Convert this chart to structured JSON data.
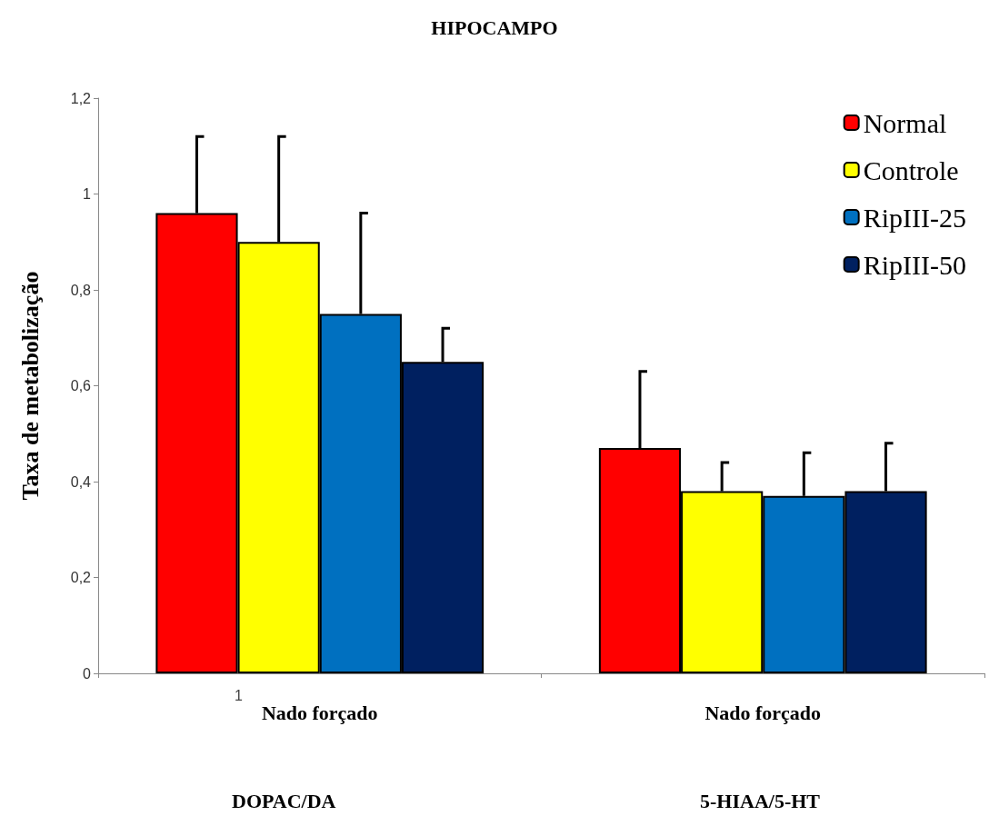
{
  "chart_data": {
    "type": "bar",
    "title": "HIPOCAMPO",
    "ylabel": "Taxa de metabolização",
    "categories": [
      "Nado forçado",
      "Nado forçado"
    ],
    "series": [
      {
        "name": "Normal",
        "color": "#ff0000",
        "values": [
          0.96,
          0.47
        ],
        "errors": [
          [
            0.96,
            1.12
          ],
          [
            0.47,
            0.63
          ]
        ]
      },
      {
        "name": "Controle",
        "color": "#ffff00",
        "values": [
          0.9,
          0.38
        ],
        "errors": [
          [
            0.9,
            1.12
          ],
          [
            0.38,
            0.44
          ]
        ]
      },
      {
        "name": "RipIII-25",
        "color": "#0070c0",
        "values": [
          0.75,
          0.37
        ],
        "errors": [
          [
            0.75,
            0.96
          ],
          [
            0.37,
            0.46
          ]
        ]
      },
      {
        "name": "RipIII-50",
        "color": "#002060",
        "values": [
          0.65,
          0.38
        ],
        "errors": [
          [
            0.65,
            0.72
          ],
          [
            0.38,
            0.48
          ]
        ]
      }
    ],
    "ylim": [
      0,
      1.2
    ],
    "yticks": [
      0,
      {
        "value": 0.2,
        "label": "0,2"
      },
      {
        "value": 0.4,
        "label": "0,4"
      },
      {
        "value": 0.6,
        "label": "0,6"
      },
      {
        "value": 0.8,
        "label": "0,8"
      },
      1,
      {
        "value": 1.2,
        "label": "1,2"
      }
    ],
    "grid": false,
    "legend": "top right",
    "annotations": [
      "1",
      "DOPAC/DA",
      "5-HIAA/5-HT"
    ]
  }
}
